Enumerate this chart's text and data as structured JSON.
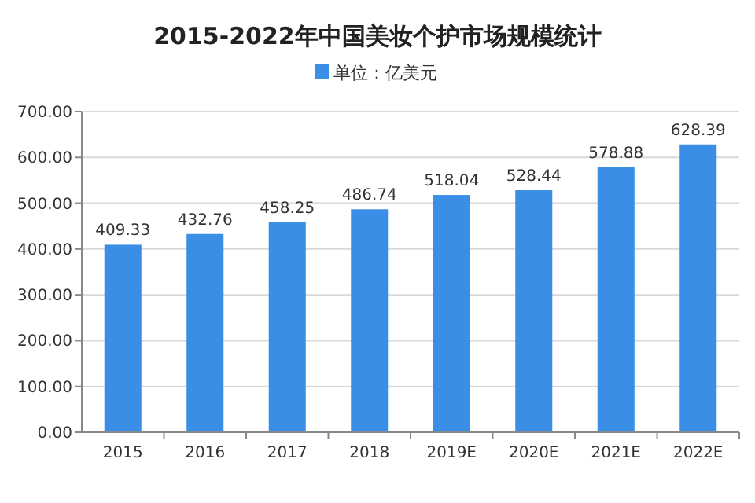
{
  "chart_data": {
    "type": "bar",
    "title": "2015-2022年中国美妆个护市场规模统计",
    "categories": [
      "2015",
      "2016",
      "2017",
      "2018",
      "2019E",
      "2020E",
      "2021E",
      "2022E"
    ],
    "series": [
      {
        "name": "单位：亿美元",
        "color": "#3a8ee6",
        "values": [
          409.33,
          432.76,
          458.25,
          486.74,
          518.04,
          528.44,
          578.88,
          628.39
        ]
      }
    ],
    "ylim": [
      0,
      700
    ],
    "yticks": [
      {
        "value": 0,
        "label": "0.00"
      },
      {
        "value": 100,
        "label": "100.00"
      },
      {
        "value": 200,
        "label": "200.00"
      },
      {
        "value": 300,
        "label": "300.00"
      },
      {
        "value": 400,
        "label": "400.00"
      },
      {
        "value": 500,
        "label": "500.00"
      },
      {
        "value": 600,
        "label": "600.00"
      },
      {
        "value": 700,
        "label": "700.00"
      }
    ],
    "grid": "y",
    "legend": "top",
    "data_labels": true
  }
}
